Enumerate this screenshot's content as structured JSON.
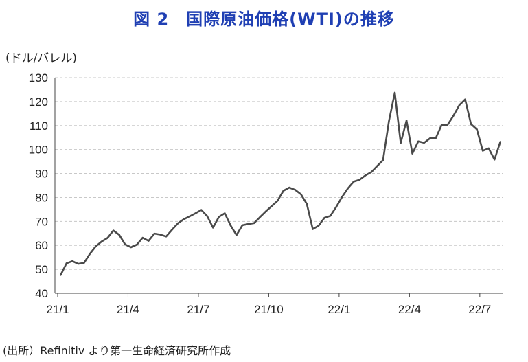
{
  "figure": {
    "title": "図 2　国際原油価格(WTI)の推移",
    "unit_label": "(ドル/バレル)",
    "source": "(出所）Refinitiv より第一生命経済研究所作成"
  },
  "colors": {
    "title": "#1f3fb3",
    "line": "#4a4a4a",
    "grid": "#c8c8c8",
    "axis": "#444444",
    "text": "#222222"
  },
  "chart_data": {
    "type": "line",
    "title": "国際原油価格(WTI)の推移",
    "xlabel": "",
    "ylabel": "(ドル/バレル)",
    "ylim": [
      40,
      130
    ],
    "yticks": [
      40,
      50,
      60,
      70,
      80,
      90,
      100,
      110,
      120,
      130
    ],
    "xticks": [
      "21/1",
      "21/4",
      "21/7",
      "21/10",
      "22/1",
      "22/4",
      "22/7"
    ],
    "xrange": [
      "2021-01",
      "2022-07-end"
    ],
    "grid": "horizontal dashed",
    "legend": "none",
    "series": [
      {
        "x": [
          "2021-01",
          "2021-01",
          "2021-01",
          "2021-01",
          "2021-02",
          "2021-02",
          "2021-02",
          "2021-02",
          "2021-03",
          "2021-03",
          "2021-03",
          "2021-03",
          "2021-04",
          "2021-04",
          "2021-04",
          "2021-04",
          "2021-05",
          "2021-05",
          "2021-05",
          "2021-05",
          "2021-06",
          "2021-06",
          "2021-06",
          "2021-06",
          "2021-07",
          "2021-07",
          "2021-07",
          "2021-07",
          "2021-08",
          "2021-08",
          "2021-08",
          "2021-08",
          "2021-09",
          "2021-09",
          "2021-09",
          "2021-09",
          "2021-10",
          "2021-10",
          "2021-10",
          "2021-10",
          "2021-11",
          "2021-11",
          "2021-11",
          "2021-11",
          "2021-12",
          "2021-12",
          "2021-12",
          "2021-12",
          "2022-01",
          "2022-01",
          "2022-01",
          "2022-01",
          "2022-02",
          "2022-02",
          "2022-02",
          "2022-02",
          "2022-03",
          "2022-03",
          "2022-03",
          "2022-03",
          "2022-04",
          "2022-04",
          "2022-04",
          "2022-04",
          "2022-05",
          "2022-05",
          "2022-05",
          "2022-05",
          "2022-06",
          "2022-06",
          "2022-06",
          "2022-06",
          "2022-07",
          "2022-07",
          "2022-07",
          "2022-07"
        ],
        "y": [
          47.6,
          52.5,
          53.4,
          52.3,
          52.7,
          56.5,
          59.6,
          61.6,
          63.1,
          66.2,
          64.4,
          60.4,
          59.2,
          60.3,
          63.2,
          61.9,
          64.9,
          64.5,
          63.7,
          66.5,
          69.2,
          70.9,
          72.1,
          73.4,
          74.8,
          72.2,
          67.4,
          71.9,
          73.4,
          68.3,
          64.3,
          68.4,
          68.9,
          69.3,
          71.8,
          74.2,
          76.4,
          78.6,
          82.8,
          84.1,
          83.2,
          81.3,
          77.3,
          66.8,
          68.2,
          71.5,
          72.3,
          76.0,
          80.2,
          83.8,
          86.6,
          87.4,
          89.2,
          90.6,
          93.1,
          95.6,
          111.9,
          123.7,
          102.7,
          112.1,
          98.3,
          103.4,
          102.8,
          104.7,
          104.8,
          110.3,
          110.3,
          114.1,
          118.5,
          120.9,
          110.6,
          108.4,
          99.5,
          100.5,
          95.8,
          103.2
        ]
      }
    ]
  }
}
